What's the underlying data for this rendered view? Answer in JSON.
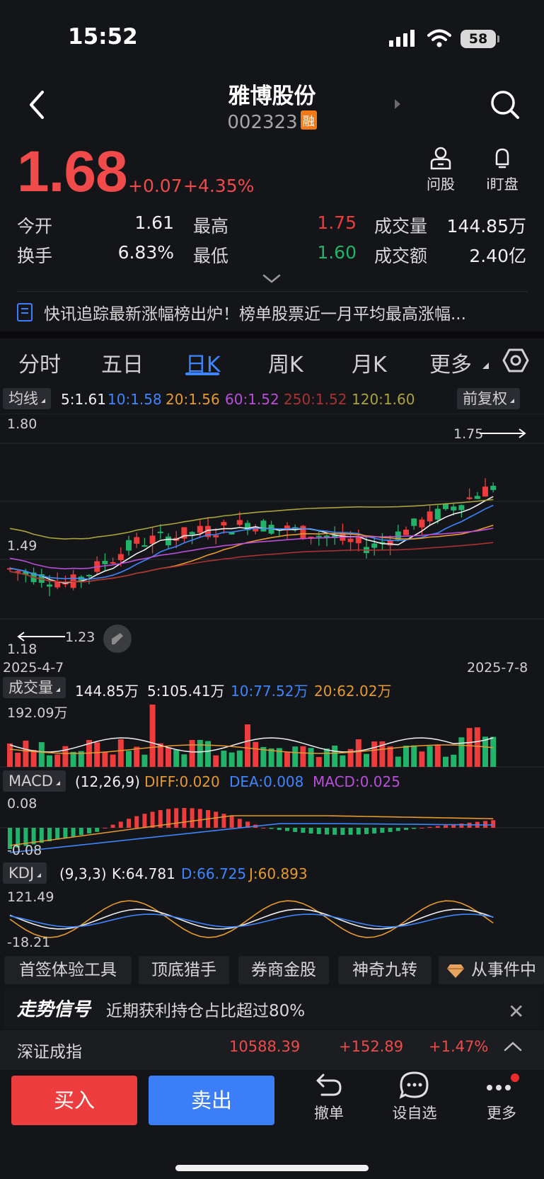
{
  "status": {
    "time": "15:52",
    "battery": "58"
  },
  "header": {
    "name": "雅博股份",
    "code": "002323",
    "badge": "融"
  },
  "quote": {
    "price": "1.68",
    "change": "+0.07",
    "change_pct": "+4.35%",
    "ask_label": "问股",
    "watch_label": "i盯盘",
    "rows": [
      [
        {
          "label": "今开",
          "value": "1.61"
        },
        {
          "label": "最高",
          "value": "1.75"
        },
        {
          "label": "成交量",
          "value": "144.85万"
        }
      ],
      [
        {
          "label": "换手",
          "value": "6.83%"
        },
        {
          "label": "最低",
          "value": "1.60"
        },
        {
          "label": "成交额",
          "value": "2.40亿"
        }
      ]
    ]
  },
  "news": {
    "text": "快讯追踪最新涨幅榜出炉！榜单股票近一月平均最高涨幅..."
  },
  "tabs": [
    "分时",
    "五日",
    "日K",
    "周K",
    "月K",
    "更多"
  ],
  "active_tab": "日K",
  "ma_bar": {
    "chip": "均线",
    "items": [
      "5:1.61",
      "10:1.58",
      "20:1.56",
      "60:1.52",
      "250:1.52",
      "120:1.60"
    ],
    "adjust": "前复权"
  },
  "kline": {
    "y_top": "1.80",
    "y_mid": "1.49",
    "y_bottom": "1.18",
    "high_label": "1.75",
    "low_label": "1.23",
    "date_start": "2025-4-7",
    "date_end": "2025-7-8"
  },
  "volume": {
    "chip": "成交量",
    "items": [
      "144.85万",
      "5:105.41万",
      "10:77.52万",
      "20:62.02万"
    ],
    "y_top": "192.09万"
  },
  "macd": {
    "chip": "MACD",
    "params": "(12,26,9)",
    "items": [
      "DIFF:0.020",
      "DEA:0.008",
      "MACD:0.025"
    ],
    "y_top": "0.08",
    "y_bottom": "-0.08"
  },
  "kdj": {
    "chip": "KDJ",
    "params": "(9,3,3)",
    "items": [
      "K:64.781",
      "D:66.725",
      "J:60.893"
    ],
    "y_top": "121.49",
    "y_bottom": "-18.21"
  },
  "bottom_chips": [
    "首签体验工具",
    "顶底猎手",
    "券商金股",
    "神奇九转",
    "从事件中"
  ],
  "signal": {
    "logo": "走势信号",
    "text": "近期获利持仓占比超过80%"
  },
  "index": {
    "name": "深证成指",
    "value": "10588.39",
    "change": "+152.89",
    "pct": "+1.47%"
  },
  "actions": {
    "buy": "买入",
    "sell": "卖出",
    "undo": "撤单",
    "watchlist": "设自选",
    "more": "更多"
  },
  "colors": {
    "up": "#ee3b3b",
    "down": "#22b36a",
    "accent": "#3d86ff",
    "bg": "#141518"
  }
}
